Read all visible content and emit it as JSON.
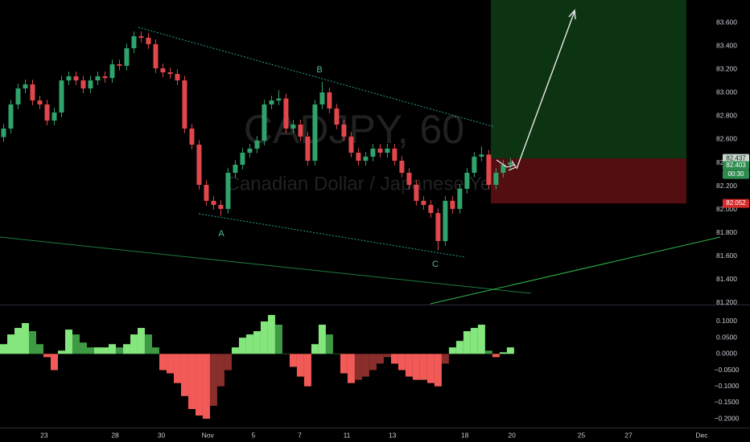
{
  "chart_data": [
    {
      "type": "candlestick",
      "title": "CADJPY, 60",
      "subtitle": "Canadian Dollar / Japanese Yen",
      "up_color": "#2fa36b",
      "down_color": "#e0474c",
      "open": [
        82.62,
        82.693,
        82.899,
        83.036,
        83.071,
        82.933,
        82.899,
        82.761,
        82.83,
        83.105,
        83.14,
        83.105,
        83.036,
        83.105,
        83.14,
        83.125,
        83.243,
        83.23,
        83.38,
        83.483,
        83.47,
        83.415,
        83.208,
        83.174,
        83.16,
        83.105,
        82.693,
        82.555,
        82.211,
        82.074,
        82.039,
        82.005,
        82.314,
        82.383,
        82.486,
        82.521,
        82.589,
        82.899,
        82.933,
        82.95,
        82.693,
        82.727,
        82.624,
        82.417,
        82.899,
        83.002,
        82.864,
        82.727,
        82.624,
        82.486,
        82.417,
        82.452,
        82.521,
        82.486,
        82.521,
        82.417,
        82.314,
        82.211,
        82.074,
        82.039,
        81.97,
        81.73,
        82.074,
        82.005,
        82.177,
        82.314,
        82.452,
        82.47,
        82.211,
        82.314,
        82.383
      ],
      "high": [
        82.733,
        82.939,
        83.076,
        83.111,
        83.111,
        82.973,
        82.939,
        82.87,
        83.145,
        83.18,
        83.18,
        83.145,
        83.145,
        83.18,
        83.18,
        83.283,
        83.283,
        83.42,
        83.523,
        83.523,
        83.51,
        83.455,
        83.248,
        83.214,
        83.2,
        83.145,
        82.733,
        82.595,
        82.251,
        82.114,
        82.079,
        82.354,
        82.423,
        82.526,
        82.561,
        82.629,
        82.939,
        82.973,
        83.02,
        82.99,
        82.767,
        82.767,
        82.664,
        82.939,
        83.093,
        83.042,
        82.904,
        82.767,
        82.664,
        82.526,
        82.492,
        82.561,
        82.561,
        82.561,
        82.561,
        82.457,
        82.354,
        82.251,
        82.114,
        82.079,
        82.01,
        82.114,
        82.114,
        82.217,
        82.354,
        82.492,
        82.54,
        82.51,
        82.354,
        82.423,
        82.443
      ],
      "low": [
        82.58,
        82.653,
        82.859,
        82.996,
        82.893,
        82.859,
        82.721,
        82.721,
        82.79,
        83.065,
        83.065,
        82.996,
        82.996,
        83.065,
        83.085,
        83.085,
        83.19,
        83.19,
        83.34,
        83.43,
        83.375,
        83.168,
        83.134,
        83.12,
        83.065,
        82.653,
        82.515,
        82.171,
        82.034,
        81.999,
        81.945,
        81.965,
        82.274,
        82.343,
        82.446,
        82.481,
        82.549,
        82.859,
        82.893,
        82.653,
        82.653,
        82.584,
        82.377,
        82.377,
        82.859,
        82.824,
        82.687,
        82.584,
        82.446,
        82.377,
        82.377,
        82.412,
        82.446,
        82.446,
        82.377,
        82.274,
        82.171,
        82.034,
        81.999,
        81.93,
        81.65,
        81.69,
        81.965,
        81.965,
        82.137,
        82.274,
        82.412,
        82.171,
        82.171,
        82.274,
        82.343
      ],
      "close": [
        82.693,
        82.899,
        83.036,
        83.071,
        82.933,
        82.899,
        82.761,
        82.83,
        83.105,
        83.14,
        83.105,
        83.036,
        83.105,
        83.14,
        83.125,
        83.243,
        83.23,
        83.38,
        83.483,
        83.47,
        83.415,
        83.208,
        83.174,
        83.16,
        83.105,
        82.693,
        82.555,
        82.211,
        82.074,
        82.039,
        82.005,
        82.314,
        82.383,
        82.486,
        82.521,
        82.589,
        82.899,
        82.933,
        82.95,
        82.693,
        82.727,
        82.624,
        82.417,
        82.899,
        83.002,
        82.864,
        82.727,
        82.624,
        82.486,
        82.417,
        82.452,
        82.521,
        82.486,
        82.521,
        82.417,
        82.314,
        82.211,
        82.074,
        82.039,
        81.97,
        81.73,
        82.074,
        82.005,
        82.177,
        82.314,
        82.452,
        82.47,
        82.211,
        82.314,
        82.383,
        82.403
      ],
      "ylim": [
        81.193,
        83.793
      ],
      "yticks": [
        {
          "value": 81.2,
          "label": "81.200"
        },
        {
          "value": 81.4,
          "label": "81.400"
        },
        {
          "value": 81.6,
          "label": "81.600"
        },
        {
          "value": 81.8,
          "label": "81.800"
        },
        {
          "value": 82.0,
          "label": "82.000"
        },
        {
          "value": 82.2,
          "label": "82.200"
        },
        {
          "value": 82.4,
          "label": "82.400"
        },
        {
          "value": 82.6,
          "label": "82.600"
        },
        {
          "value": 82.8,
          "label": "82.800"
        },
        {
          "value": 83.0,
          "label": "83.000"
        },
        {
          "value": 83.2,
          "label": "83.200"
        },
        {
          "value": 83.4,
          "label": "83.400"
        },
        {
          "value": 83.6,
          "label": "83.600"
        }
      ],
      "xlim": [
        -0.5,
        97.3
      ],
      "xticks": [
        {
          "value": 5.6,
          "label": "23"
        },
        {
          "value": 15.4,
          "label": "28"
        },
        {
          "value": 21.8,
          "label": "30"
        },
        {
          "value": 28.2,
          "label": "Nov"
        },
        {
          "value": 34.5,
          "label": "5"
        },
        {
          "value": 40.9,
          "label": "7"
        },
        {
          "value": 47.4,
          "label": "11"
        },
        {
          "value": 53.7,
          "label": "13"
        },
        {
          "value": 63.7,
          "label": "18"
        },
        {
          "value": 70.2,
          "label": "20"
        },
        {
          "value": 79.8,
          "label": "25"
        },
        {
          "value": 86.3,
          "label": "27"
        },
        {
          "value": 96.4,
          "label": "Dec"
        }
      ],
      "annotations": [
        "A",
        "B",
        "C"
      ],
      "position": {
        "entry": {
          "value": 82.437,
          "label": "82.437"
        },
        "stop": {
          "value": 82.052,
          "label": "82.052"
        }
      },
      "last_price": {
        "value": 82.403,
        "label": "82.403"
      },
      "countdown": "00:30"
    },
    {
      "type": "bar",
      "values": [
        0.03,
        0.06,
        0.08,
        0.095,
        0.07,
        0.03,
        -0.01,
        -0.05,
        0.01,
        0.075,
        0.06,
        0.035,
        0.02,
        0.02,
        0.02,
        0.03,
        0.02,
        0.03,
        0.06,
        0.08,
        0.06,
        0.02,
        -0.05,
        -0.06,
        -0.09,
        -0.13,
        -0.17,
        -0.19,
        -0.2,
        -0.16,
        -0.1,
        -0.05,
        0.02,
        0.05,
        0.06,
        0.07,
        0.1,
        0.12,
        0.09,
        0.0,
        -0.04,
        -0.07,
        -0.1,
        0.03,
        0.09,
        0.06,
        0.0,
        -0.06,
        -0.09,
        -0.08,
        -0.07,
        -0.05,
        -0.03,
        -0.01,
        -0.03,
        -0.05,
        -0.07,
        -0.08,
        -0.08,
        -0.09,
        -0.1,
        -0.03,
        0.02,
        0.04,
        0.07,
        0.08,
        0.09,
        0.01,
        -0.01,
        0.005,
        0.02
      ],
      "colors": {
        "pos_up": "#84e67c",
        "pos_down": "#3f9a45",
        "neg_down": "#f25a57",
        "neg_up": "#8a2e2c"
      },
      "ylim": [
        -0.227,
        0.147
      ],
      "yticks": [
        {
          "value": 0.1,
          "label": "0.1000"
        },
        {
          "value": 0.05,
          "label": "0.0500"
        },
        {
          "value": 0,
          "label": "0.0000"
        },
        {
          "value": -0.05,
          "label": "−0.0500"
        },
        {
          "value": -0.1,
          "label": "−0.1000"
        },
        {
          "value": -0.15,
          "label": "−0.1500"
        },
        {
          "value": -0.2,
          "label": "−0.2000"
        }
      ]
    }
  ]
}
